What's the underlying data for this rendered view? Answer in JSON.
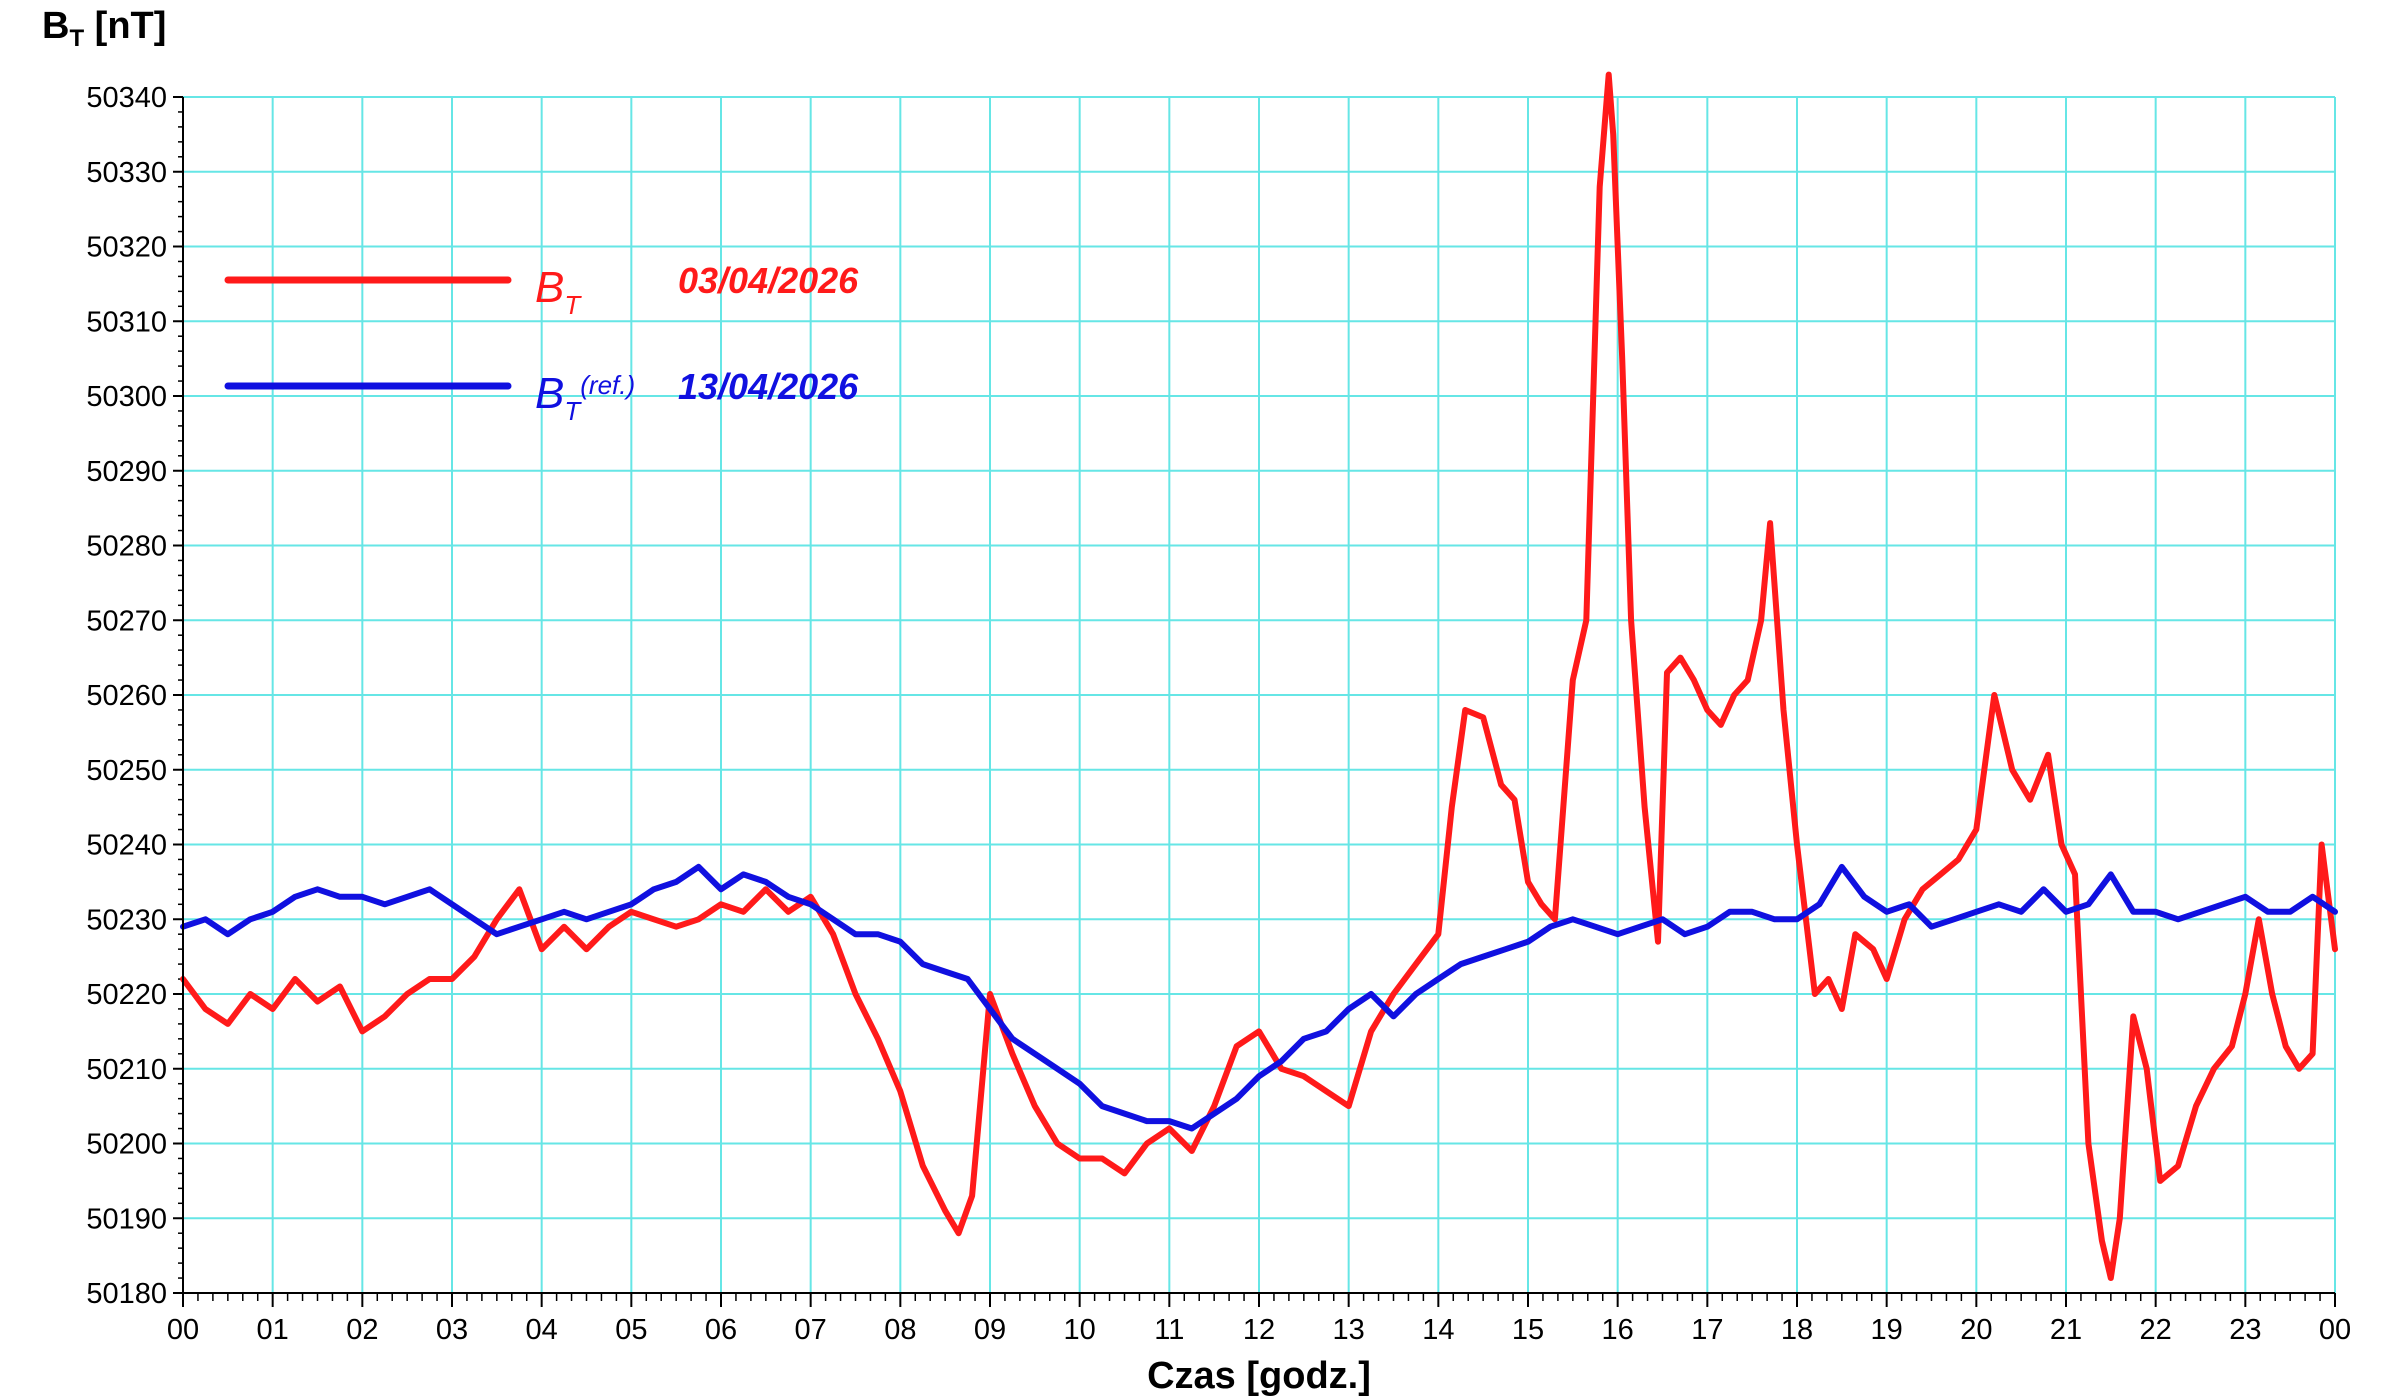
{
  "chart_data": {
    "type": "line",
    "ylabel": "B",
    "ylabel_sub": "T",
    "ylabel_unit": " [nT]",
    "xlabel": "Czas [godz.]",
    "ylim": [
      50180,
      50340
    ],
    "xlim": [
      0,
      24
    ],
    "grid": true,
    "grid_color": "#66e6e6",
    "y_ticks": [
      50180,
      50190,
      50200,
      50210,
      50220,
      50230,
      50240,
      50250,
      50260,
      50270,
      50280,
      50290,
      50300,
      50310,
      50320,
      50330,
      50340
    ],
    "x_tick_labels": [
      "00",
      "01",
      "02",
      "03",
      "04",
      "05",
      "06",
      "07",
      "08",
      "09",
      "10",
      "11",
      "12",
      "13",
      "14",
      "15",
      "16",
      "17",
      "18",
      "19",
      "20",
      "21",
      "22",
      "23",
      "00"
    ],
    "legend_position": "top-left",
    "series": [
      {
        "name": "B_T",
        "legend_symbol": "B",
        "legend_sub": "T",
        "legend_sup": "",
        "legend_date": "03/04/2026",
        "color": "#ff1a1a",
        "x": [
          0,
          0.25,
          0.5,
          0.75,
          1,
          1.25,
          1.5,
          1.75,
          2,
          2.25,
          2.5,
          2.75,
          3,
          3.25,
          3.5,
          3.75,
          4,
          4.25,
          4.5,
          4.75,
          5,
          5.25,
          5.5,
          5.75,
          6,
          6.25,
          6.5,
          6.75,
          7,
          7.25,
          7.5,
          7.75,
          8,
          8.25,
          8.5,
          8.65,
          8.8,
          9,
          9.25,
          9.5,
          9.75,
          10,
          10.25,
          10.5,
          10.75,
          11,
          11.25,
          11.5,
          11.75,
          12,
          12.25,
          12.5,
          12.75,
          13,
          13.25,
          13.5,
          13.75,
          14,
          14.15,
          14.3,
          14.5,
          14.7,
          14.85,
          15,
          15.15,
          15.3,
          15.5,
          15.65,
          15.8,
          15.9,
          15.95,
          16.05,
          16.15,
          16.3,
          16.45,
          16.55,
          16.7,
          16.85,
          17,
          17.15,
          17.3,
          17.45,
          17.6,
          17.7,
          17.85,
          18,
          18.2,
          18.35,
          18.5,
          18.65,
          18.85,
          19,
          19.2,
          19.4,
          19.6,
          19.8,
          20,
          20.2,
          20.4,
          20.6,
          20.8,
          20.95,
          21.1,
          21.25,
          21.4,
          21.5,
          21.6,
          21.75,
          21.9,
          22.05,
          22.25,
          22.45,
          22.65,
          22.85,
          23,
          23.15,
          23.3,
          23.45,
          23.6,
          23.75,
          23.85,
          24
        ],
        "y": [
          50222,
          50218,
          50216,
          50220,
          50218,
          50222,
          50219,
          50221,
          50215,
          50217,
          50220,
          50222,
          50222,
          50225,
          50230,
          50234,
          50226,
          50229,
          50226,
          50229,
          50231,
          50230,
          50229,
          50230,
          50232,
          50231,
          50234,
          50231,
          50233,
          50228,
          50220,
          50214,
          50207,
          50197,
          50191,
          50188,
          50193,
          50220,
          50212,
          50205,
          50200,
          50198,
          50198,
          50196,
          50200,
          50202,
          50199,
          50205,
          50213,
          50215,
          50210,
          50209,
          50207,
          50205,
          50215,
          50220,
          50224,
          50228,
          50245,
          50258,
          50257,
          50248,
          50246,
          50235,
          50232,
          50230,
          50262,
          50270,
          50328,
          50343,
          50335,
          50305,
          50270,
          50245,
          50227,
          50263,
          50265,
          50262,
          50258,
          50256,
          50260,
          50262,
          50270,
          50283,
          50258,
          50240,
          50220,
          50222,
          50218,
          50228,
          50226,
          50222,
          50230,
          50234,
          50236,
          50238,
          50242,
          50260,
          50250,
          50246,
          50252,
          50240,
          50236,
          50200,
          50187,
          50182,
          50190,
          50217,
          50210,
          50195,
          50197,
          50205,
          50210,
          50213,
          50220,
          50230,
          50220,
          50213,
          50210,
          50212,
          50240,
          50226
        ]
      },
      {
        "name": "B_T(ref.)",
        "legend_symbol": "B",
        "legend_sub": "T",
        "legend_sup": "(ref.)",
        "legend_date": "13/04/2026",
        "color": "#1010e0",
        "x": [
          0,
          0.25,
          0.5,
          0.75,
          1,
          1.25,
          1.5,
          1.75,
          2,
          2.25,
          2.5,
          2.75,
          3,
          3.25,
          3.5,
          3.75,
          4,
          4.25,
          4.5,
          4.75,
          5,
          5.25,
          5.5,
          5.75,
          6,
          6.25,
          6.5,
          6.75,
          7,
          7.25,
          7.5,
          7.75,
          8,
          8.25,
          8.5,
          8.75,
          9,
          9.25,
          9.5,
          9.75,
          10,
          10.25,
          10.5,
          10.75,
          11,
          11.25,
          11.5,
          11.75,
          12,
          12.25,
          12.5,
          12.75,
          13,
          13.25,
          13.5,
          13.75,
          14,
          14.25,
          14.5,
          14.75,
          15,
          15.25,
          15.5,
          15.75,
          16,
          16.25,
          16.5,
          16.75,
          17,
          17.25,
          17.5,
          17.75,
          18,
          18.25,
          18.5,
          18.75,
          19,
          19.25,
          19.5,
          19.75,
          20,
          20.25,
          20.5,
          20.75,
          21,
          21.25,
          21.5,
          21.75,
          22,
          22.25,
          22.5,
          22.75,
          23,
          23.25,
          23.5,
          23.75,
          24
        ],
        "y": [
          50229,
          50230,
          50228,
          50230,
          50231,
          50233,
          50234,
          50233,
          50233,
          50232,
          50233,
          50234,
          50232,
          50230,
          50228,
          50229,
          50230,
          50231,
          50230,
          50231,
          50232,
          50234,
          50235,
          50237,
          50234,
          50236,
          50235,
          50233,
          50232,
          50230,
          50228,
          50228,
          50227,
          50224,
          50223,
          50222,
          50218,
          50214,
          50212,
          50210,
          50208,
          50205,
          50204,
          50203,
          50203,
          50202,
          50204,
          50206,
          50209,
          50211,
          50214,
          50215,
          50218,
          50220,
          50217,
          50220,
          50222,
          50224,
          50225,
          50226,
          50227,
          50229,
          50230,
          50229,
          50228,
          50229,
          50230,
          50228,
          50229,
          50231,
          50231,
          50230,
          50230,
          50232,
          50237,
          50233,
          50231,
          50232,
          50229,
          50230,
          50231,
          50232,
          50231,
          50234,
          50231,
          50232,
          50236,
          50231,
          50231,
          50230,
          50231,
          50232,
          50233,
          50231,
          50231,
          50233,
          50231
        ]
      }
    ]
  }
}
